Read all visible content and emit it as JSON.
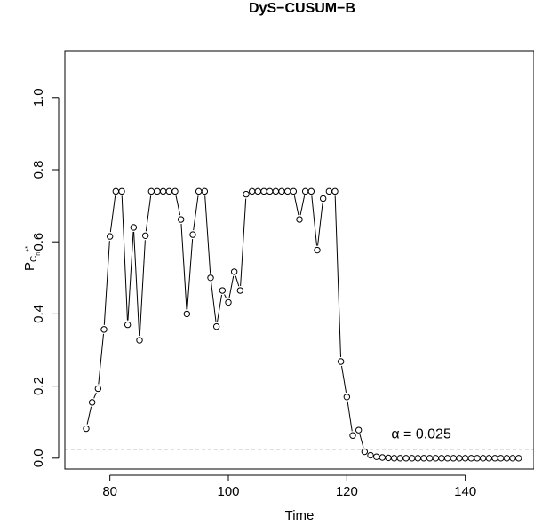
{
  "chart_data": {
    "type": "line",
    "title": "DyS−CUSUM−B",
    "xlabel": "Time",
    "ylabel": {
      "base": "P",
      "sub": "C",
      "subsub": "n",
      "sup": "+*"
    },
    "xlim": [
      72.4,
      151.6
    ],
    "ylim": [
      -0.03,
      1.13
    ],
    "xticks": [
      80,
      100,
      120,
      140
    ],
    "yticks": [
      0.0,
      0.2,
      0.4,
      0.6,
      0.8,
      1.0
    ],
    "ytick_labels": [
      "0.0",
      "0.2",
      "0.4",
      "0.6",
      "0.8",
      "1.0"
    ],
    "series": [
      {
        "style": "both (points and line segments)",
        "marker": "open-circle",
        "color": "#000000",
        "x": [
          76,
          77,
          78,
          79,
          80,
          81,
          82,
          83,
          84,
          85,
          86,
          87,
          88,
          89,
          90,
          91,
          92,
          93,
          94,
          95,
          96,
          97,
          98,
          99,
          100,
          101,
          102,
          103,
          104,
          105,
          106,
          107,
          108,
          109,
          110,
          111,
          112,
          113,
          114,
          115,
          116,
          117,
          118,
          119,
          120,
          121,
          122,
          123,
          124,
          125,
          126,
          127,
          128,
          129,
          130,
          131,
          132,
          133,
          134,
          135,
          136,
          137,
          138,
          139,
          140,
          141,
          142,
          143,
          144,
          145,
          146,
          147,
          148,
          149
        ],
        "y": [
          0.082,
          0.155,
          0.193,
          0.357,
          0.615,
          0.74,
          0.74,
          0.37,
          0.64,
          0.327,
          0.617,
          0.74,
          0.74,
          0.74,
          0.74,
          0.74,
          0.662,
          0.4,
          0.62,
          0.74,
          0.74,
          0.5,
          0.365,
          0.465,
          0.432,
          0.517,
          0.465,
          0.732,
          0.74,
          0.74,
          0.74,
          0.74,
          0.74,
          0.74,
          0.74,
          0.74,
          0.662,
          0.74,
          0.74,
          0.577,
          0.72,
          0.74,
          0.74,
          0.268,
          0.17,
          0.063,
          0.078,
          0.018,
          0.008,
          0.004,
          0.002,
          0.001,
          0.0,
          0.0,
          0.0,
          0.0,
          0.0,
          0.0,
          0.0,
          0.0,
          0.0,
          0.0,
          0.0,
          0.0,
          0.0,
          0.0,
          0.0,
          0.0,
          0.0,
          0.0,
          0.0,
          0.0,
          0.0,
          0.0
        ]
      }
    ],
    "reference_line": {
      "y": 0.025,
      "style": "dashed",
      "label": "α = 0.025"
    },
    "grid": false,
    "legend": "none"
  }
}
